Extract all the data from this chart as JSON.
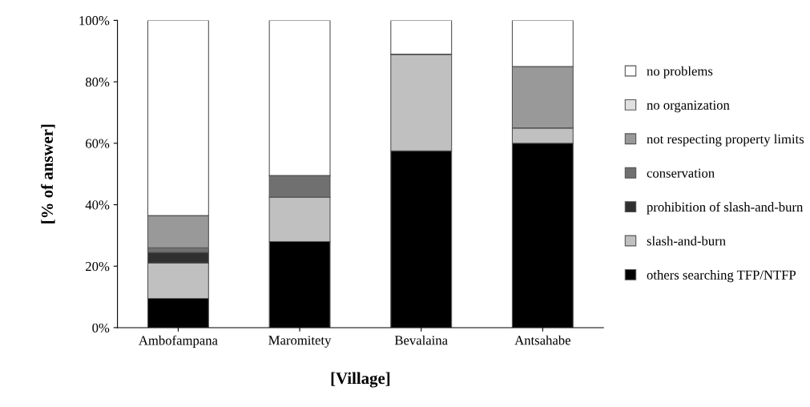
{
  "chart_data": {
    "type": "bar",
    "stacked": true,
    "xlabel": "[Village]",
    "ylabel": "[% of answer]",
    "categories": [
      "Ambofampana",
      "Maromitety",
      "Bevalaina",
      "Antsahabe"
    ],
    "series": [
      {
        "name": "others searching TFP/NTFP",
        "color": "#000000",
        "values": [
          9.5,
          28,
          57.5,
          60
        ]
      },
      {
        "name": "slash-and-burn",
        "color": "#c0c0c0",
        "values": [
          11.5,
          14.5,
          31.5,
          5
        ]
      },
      {
        "name": "prohibition of slash-and-burn",
        "color": "#303030",
        "values": [
          3.5,
          0,
          0,
          0
        ]
      },
      {
        "name": "conservation",
        "color": "#707070",
        "values": [
          1.5,
          7,
          0,
          0
        ]
      },
      {
        "name": "not respecting property limits",
        "color": "#999999",
        "values": [
          10.5,
          0,
          0,
          20
        ]
      },
      {
        "name": "no organization",
        "color": "#e0e0e0",
        "values": [
          0,
          0,
          0,
          0
        ]
      },
      {
        "name": "no problems",
        "color": "#ffffff",
        "values": [
          63.5,
          50.5,
          11,
          15
        ]
      }
    ],
    "ylim": [
      0,
      100
    ],
    "yticks": [
      {
        "value": 0,
        "label": "0%"
      },
      {
        "value": 20,
        "label": "20%"
      },
      {
        "value": 40,
        "label": "40%"
      },
      {
        "value": 60,
        "label": "60%"
      },
      {
        "value": 80,
        "label": "80%"
      },
      {
        "value": 100,
        "label": "100%"
      }
    ],
    "grid": false,
    "legend": "right"
  }
}
